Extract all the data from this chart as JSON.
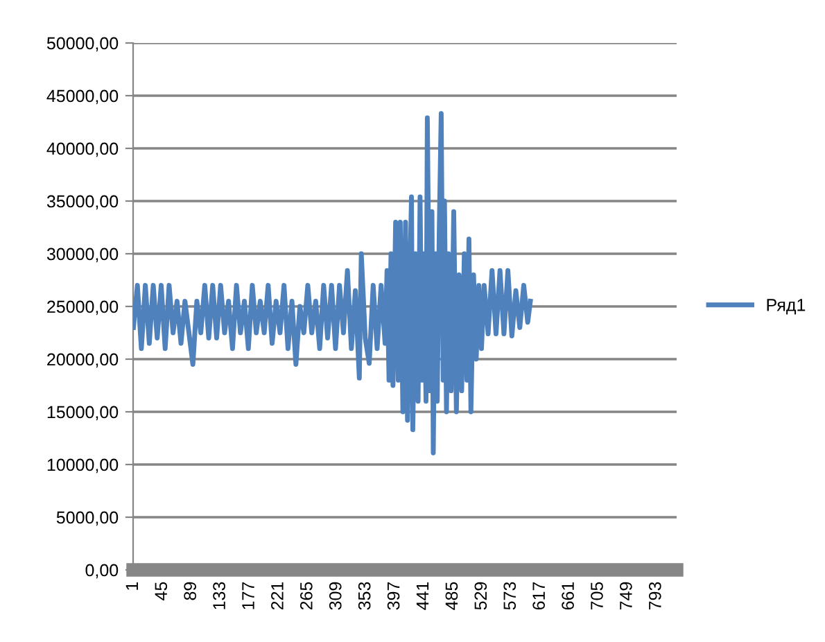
{
  "chart_data": {
    "type": "line",
    "series": [
      {
        "name": "Ряд1",
        "color": "#4f81bd",
        "x": [
          1,
          7,
          13,
          19,
          25,
          31,
          37,
          43,
          49,
          55,
          61,
          67,
          73,
          79,
          85,
          91,
          97,
          103,
          109,
          115,
          121,
          127,
          133,
          139,
          145,
          151,
          157,
          163,
          169,
          175,
          181,
          187,
          193,
          199,
          205,
          211,
          217,
          223,
          229,
          235,
          241,
          247,
          253,
          259,
          265,
          271,
          277,
          283,
          289,
          295,
          301,
          307,
          313,
          319,
          325,
          331,
          337,
          343,
          346,
          352,
          358,
          364,
          370,
          376,
          382,
          385,
          388,
          391,
          394,
          398,
          402,
          405,
          409,
          413,
          416,
          420,
          422,
          424,
          428,
          432,
          435,
          438,
          441,
          444,
          446,
          450,
          453,
          455,
          458,
          461,
          464,
          467,
          470,
          472,
          475,
          478,
          482,
          486,
          490,
          494,
          498,
          502,
          506,
          509,
          512,
          516,
          520,
          524,
          528,
          532,
          538,
          544,
          550,
          556,
          562,
          568,
          574,
          580,
          586,
          592,
          598,
          602
        ],
        "values": [
          23000,
          27000,
          21000,
          27000,
          21500,
          27000,
          22000,
          27000,
          21000,
          27000,
          22500,
          25500,
          21500,
          25500,
          22500,
          19500,
          25500,
          22500,
          27000,
          22000,
          27000,
          22000,
          27000,
          22500,
          25500,
          21000,
          27000,
          22500,
          25500,
          21000,
          27000,
          22500,
          25500,
          22500,
          27000,
          21500,
          25500,
          22500,
          27000,
          21000,
          25500,
          19500,
          25000,
          22500,
          27000,
          22500,
          25500,
          21000,
          27000,
          22000,
          27000,
          21000,
          27000,
          22500,
          28400,
          21000,
          26500,
          18200,
          30000,
          22000,
          19600,
          27000,
          21000,
          27000,
          21500,
          28400,
          18000,
          30000,
          17500,
          33000,
          18000,
          33000,
          15000,
          33000,
          14200,
          29000,
          35400,
          13300,
          30000,
          16000,
          35400,
          18000,
          30000,
          16000,
          42900,
          17000,
          34000,
          11100,
          30000,
          16000,
          32000,
          43300,
          18000,
          35000,
          15000,
          30000,
          17000,
          34000,
          15000,
          28000,
          17000,
          30000,
          18000,
          31400,
          15000,
          28000,
          20000,
          27000,
          21000,
          27000,
          22400,
          28400,
          22400,
          28400,
          22400,
          28400,
          22200,
          26500,
          23000,
          27000,
          23500,
          25500
        ]
      }
    ],
    "xlim": [
      0.5,
      823.5
    ],
    "xticks": [
      1,
      45,
      89,
      133,
      177,
      221,
      265,
      309,
      353,
      397,
      441,
      485,
      529,
      573,
      617,
      661,
      705,
      749,
      793
    ],
    "ylim": [
      0,
      50000
    ],
    "yticks": [
      {
        "value": 0,
        "label": "0,00"
      },
      {
        "value": 5000,
        "label": "5000,00"
      },
      {
        "value": 10000,
        "label": "10000,00"
      },
      {
        "value": 15000,
        "label": "15000,00"
      },
      {
        "value": 20000,
        "label": "20000,00"
      },
      {
        "value": 25000,
        "label": "25000,00"
      },
      {
        "value": 30000,
        "label": "30000,00"
      },
      {
        "value": 35000,
        "label": "35000,00"
      },
      {
        "value": 40000,
        "label": "40000,00"
      },
      {
        "value": 45000,
        "label": "45000,00"
      },
      {
        "value": 50000,
        "label": "50000,00"
      }
    ],
    "grid": "y",
    "legend": "right"
  }
}
